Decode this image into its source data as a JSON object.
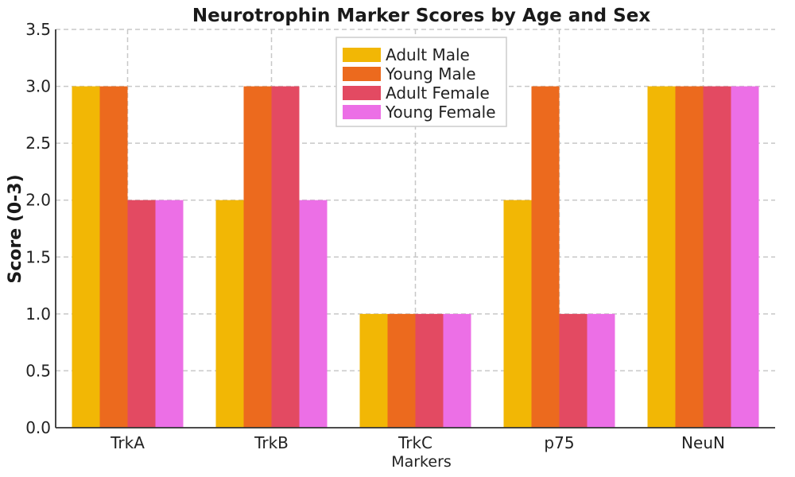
{
  "chart_data": {
    "type": "bar",
    "title": "Neurotrophin Marker Scores by Age and Sex",
    "xlabel": "Markers",
    "ylabel": "Score (0-3)",
    "categories": [
      "TrkA",
      "TrkB",
      "TrkC",
      "p75",
      "NeuN"
    ],
    "ylim": [
      0,
      3.5
    ],
    "yticks": [
      "0.0",
      "0.5",
      "1.0",
      "1.5",
      "2.0",
      "2.5",
      "3.0",
      "3.5"
    ],
    "grid": true,
    "legend_position": "top-center",
    "series": [
      {
        "name": "Adult Male",
        "color": "#F2B705",
        "values": [
          3,
          2,
          1,
          2,
          3
        ]
      },
      {
        "name": "Young Male",
        "color": "#EC6A1E",
        "values": [
          3,
          3,
          1,
          3,
          3
        ]
      },
      {
        "name": "Adult Female",
        "color": "#E34A62",
        "values": [
          2,
          3,
          1,
          1,
          3
        ]
      },
      {
        "name": "Young Female",
        "color": "#EC6FE6",
        "values": [
          2,
          2,
          1,
          1,
          3
        ]
      }
    ]
  }
}
